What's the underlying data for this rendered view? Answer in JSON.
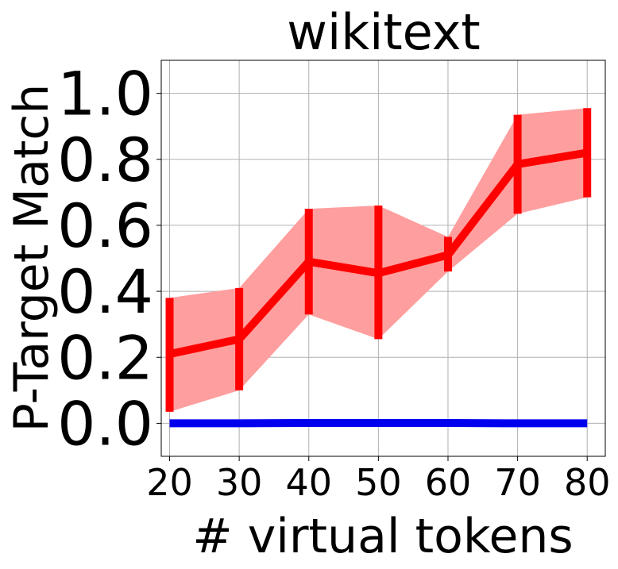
{
  "chart_data": {
    "type": "line",
    "title": "wikitext",
    "xlabel": "# virtual tokens",
    "ylabel": "P-Target Match",
    "x": [
      20,
      30,
      40,
      50,
      60,
      70,
      80
    ],
    "x_tick_labels": [
      "20",
      "30",
      "40",
      "50",
      "60",
      "70",
      "80"
    ],
    "y_ticks": [
      0.0,
      0.2,
      0.4,
      0.6,
      0.8,
      1.0
    ],
    "y_tick_labels": [
      "0.0",
      "0.2",
      "0.4",
      "0.6",
      "0.8",
      "1.0"
    ],
    "xlim": [
      18.8,
      82.6
    ],
    "ylim": [
      -0.1,
      1.1
    ],
    "grid": true,
    "series": [
      {
        "color": "#ff0000",
        "band_color": "#ff9e9e",
        "values": [
          0.21,
          0.255,
          0.49,
          0.455,
          0.51,
          0.785,
          0.82
        ],
        "lower": [
          0.035,
          0.1,
          0.33,
          0.255,
          0.46,
          0.635,
          0.685
        ],
        "upper": [
          0.38,
          0.41,
          0.65,
          0.66,
          0.565,
          0.935,
          0.955
        ]
      },
      {
        "color": "#0000ee",
        "values": [
          0.0,
          0.0,
          0.001,
          0.001,
          0.001,
          0.0,
          0.0
        ]
      }
    ]
  }
}
